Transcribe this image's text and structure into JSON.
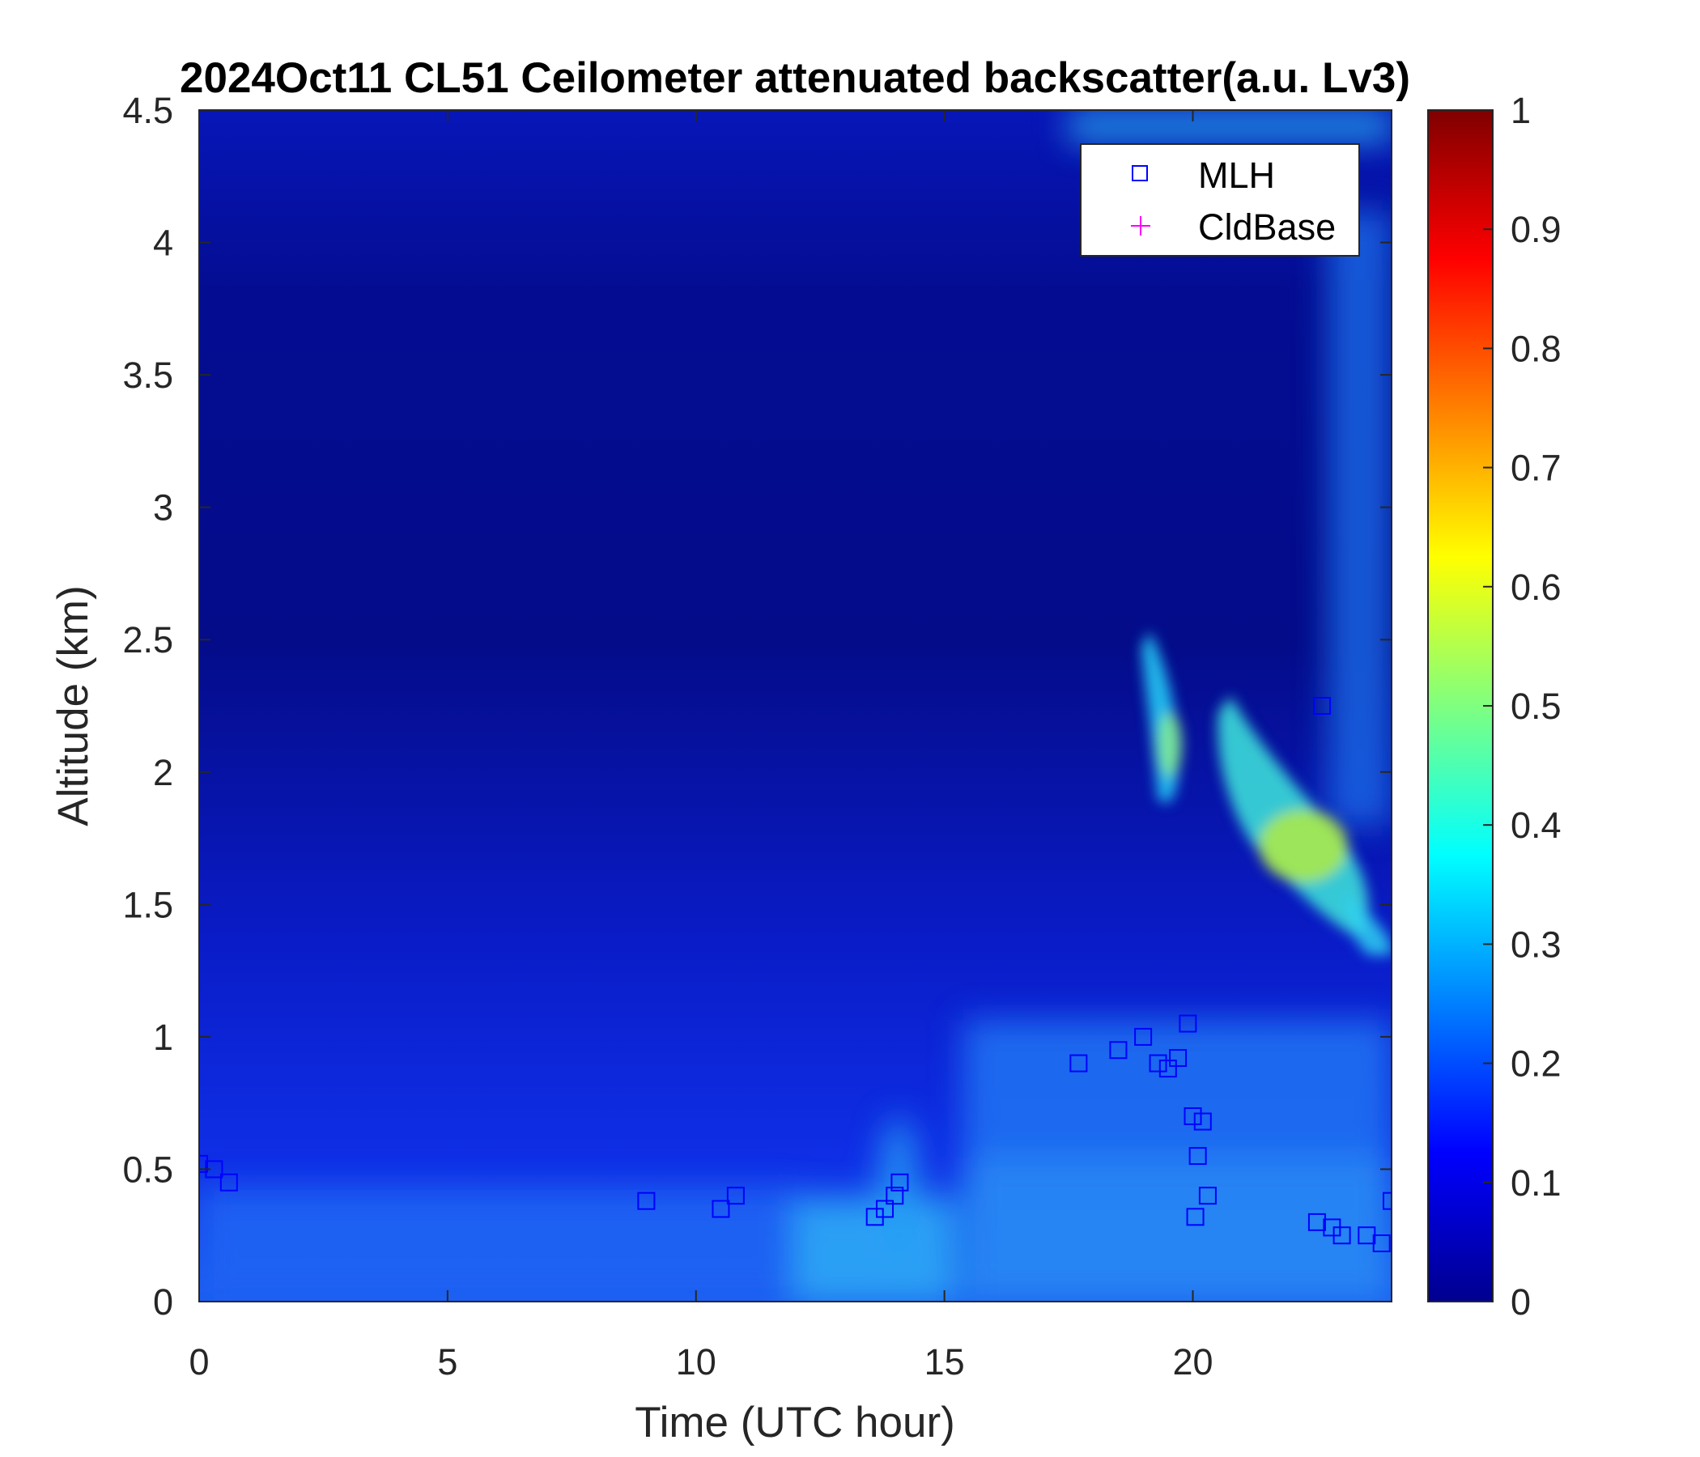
{
  "chart_data": {
    "type": "heatmap",
    "title": "2024Oct11 CL51 Ceilometer attenuated backscatter(a.u. Lv3)",
    "xlabel": "Time (UTC hour)",
    "ylabel": "Altitude (km)",
    "xlim": [
      0,
      24
    ],
    "ylim": [
      0,
      4.5
    ],
    "xticks": [
      0,
      5,
      10,
      15,
      20
    ],
    "yticks": [
      0,
      0.5,
      1,
      1.5,
      2,
      2.5,
      3,
      3.5,
      4,
      4.5
    ],
    "colorbar": {
      "colormap": "jet",
      "range": [
        0,
        1
      ],
      "ticks": [
        0,
        0.1,
        0.2,
        0.3,
        0.4,
        0.5,
        0.6,
        0.7,
        0.8,
        0.9,
        1
      ]
    },
    "legend": {
      "placement": "top-right",
      "entries": [
        {
          "name": "MLH",
          "marker": "square",
          "color": "#0000ff"
        },
        {
          "name": "CldBase",
          "marker": "plus",
          "color": "#ff00ff"
        }
      ]
    },
    "series": [
      {
        "name": "MLH",
        "x": [
          0.0,
          0.3,
          0.6,
          9.0,
          10.5,
          10.8,
          13.6,
          13.8,
          14.0,
          14.1,
          17.7,
          18.5,
          19.0,
          19.3,
          19.5,
          19.7,
          19.9,
          20.0,
          20.1,
          20.2,
          20.3,
          20.05,
          22.5,
          22.8,
          22.6,
          23.0,
          23.5,
          23.8,
          24.0
        ],
        "y": [
          0.52,
          0.5,
          0.45,
          0.38,
          0.35,
          0.4,
          0.32,
          0.35,
          0.4,
          0.45,
          0.9,
          0.95,
          1.0,
          0.9,
          0.88,
          0.92,
          1.05,
          0.7,
          0.55,
          0.68,
          0.4,
          0.32,
          0.3,
          0.28,
          2.25,
          0.25,
          0.25,
          0.22,
          0.38
        ]
      }
    ]
  }
}
